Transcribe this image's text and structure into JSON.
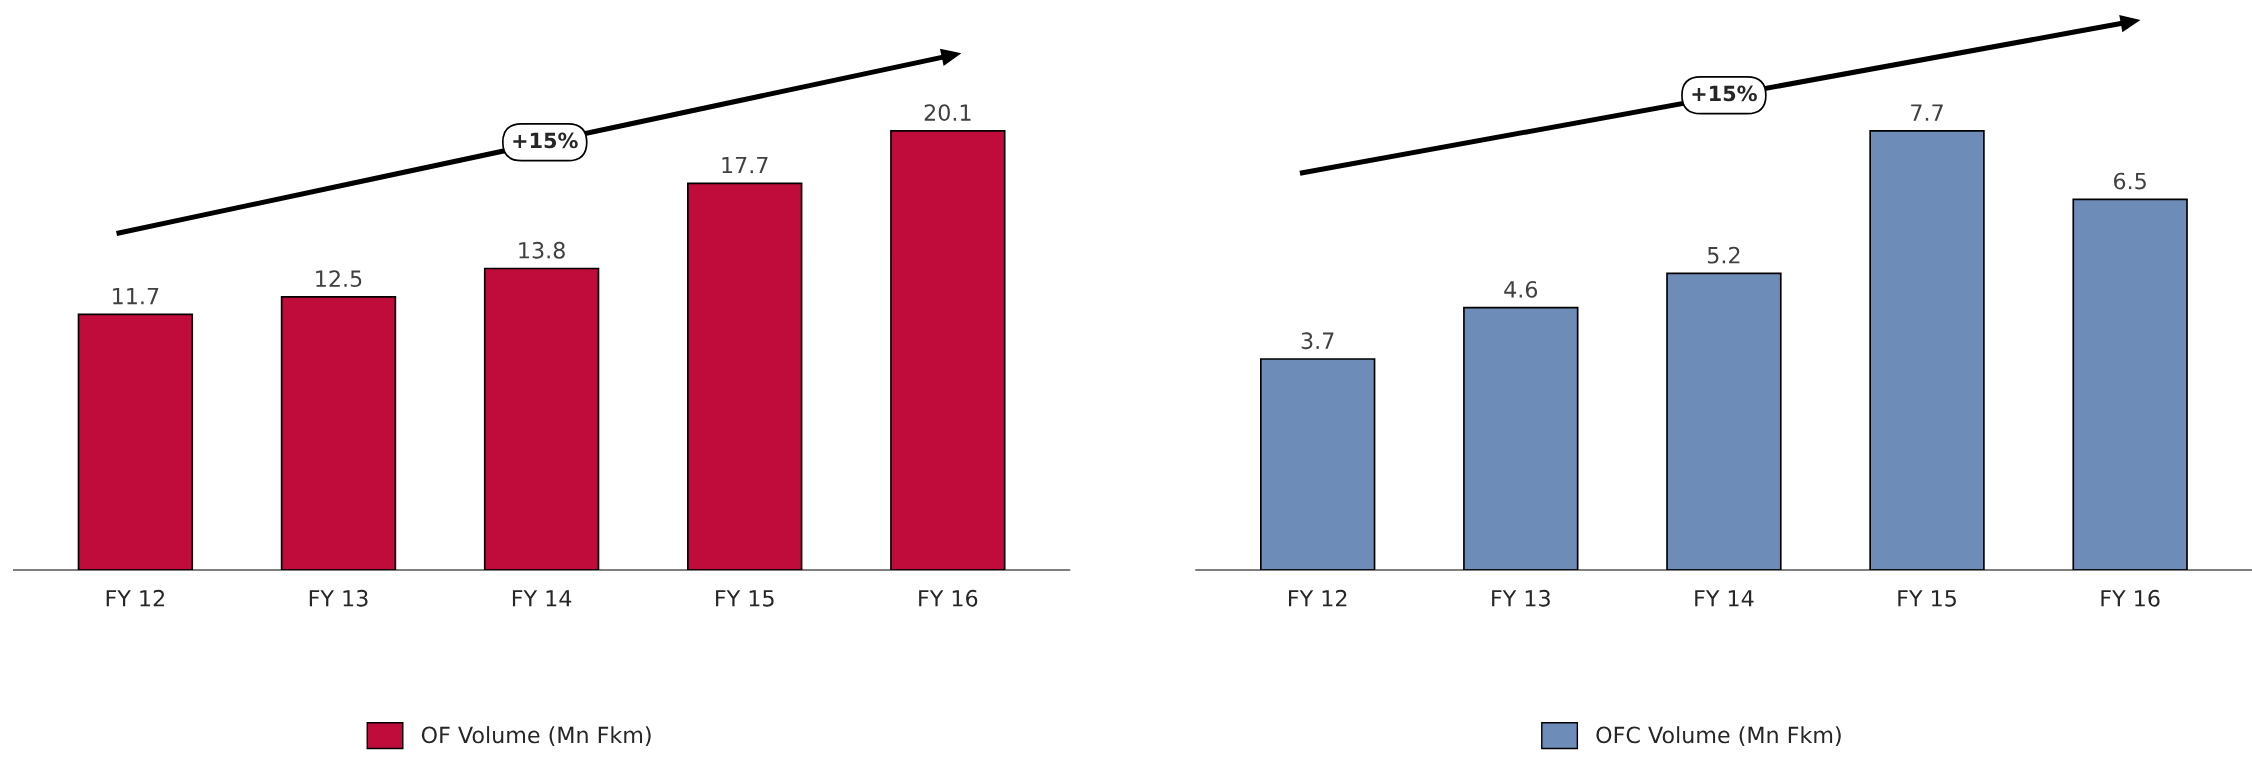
{
  "chart_data": [
    {
      "type": "bar",
      "categories": [
        "FY 12",
        "FY 13",
        "FY 14",
        "FY 15",
        "FY 16"
      ],
      "series": [
        {
          "name": "OF Volume (Mn Fkm)",
          "color": "#c00c3a",
          "values": [
            11.7,
            12.5,
            13.8,
            17.7,
            20.1
          ]
        }
      ],
      "data_labels": true,
      "legend": "bottom",
      "tick_labels": "x",
      "annotations": [
        "+15%"
      ]
    },
    {
      "type": "bar",
      "categories": [
        "FY 12",
        "FY 13",
        "FY 14",
        "FY 15",
        "FY 16"
      ],
      "series": [
        {
          "name": "OFC Volume (Mn Fkm)",
          "color": "#6e8cb8",
          "values": [
            3.7,
            4.6,
            5.2,
            7.7,
            6.5
          ]
        }
      ],
      "data_labels": true,
      "legend": "bottom",
      "tick_labels": "x",
      "annotations": [
        "+15%"
      ]
    }
  ]
}
